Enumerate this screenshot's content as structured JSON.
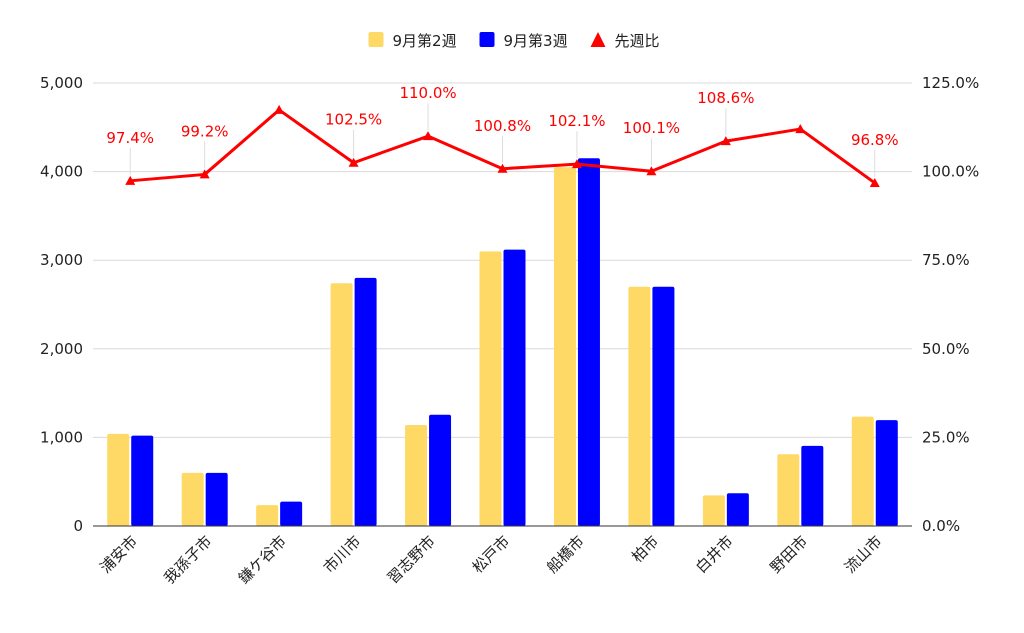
{
  "chart_data": {
    "type": "bar",
    "categories": [
      "浦安市",
      "我孫子市",
      "鎌ケ谷市",
      "市川市",
      "習志野市",
      "松戸市",
      "船橋市",
      "柏市",
      "白井市",
      "野田市",
      "流山市"
    ],
    "series": [
      {
        "name": "9月第2週",
        "type": "bar",
        "axis": "left",
        "color": "#FFD966",
        "values": [
          1040,
          600,
          235,
          2740,
          1140,
          3100,
          4050,
          2700,
          345,
          810,
          1235
        ]
      },
      {
        "name": "9月第3週",
        "type": "bar",
        "axis": "left",
        "color": "#0000FF",
        "values": [
          1020,
          600,
          275,
          2800,
          1255,
          3120,
          4150,
          2700,
          370,
          905,
          1195
        ]
      },
      {
        "name": "先週比",
        "type": "line",
        "axis": "right",
        "color": "#FF0000",
        "marker": "triangle",
        "values": [
          97.4,
          99.2,
          117.4,
          102.5,
          110.0,
          100.8,
          102.1,
          100.1,
          108.6,
          112.0,
          96.8
        ],
        "labels": [
          "97.4%",
          "99.2%",
          "",
          "102.5%",
          "110.0%",
          "100.8%",
          "102.1%",
          "100.1%",
          "108.6%",
          "",
          "96.8%"
        ]
      }
    ],
    "ylim": [
      0,
      5000
    ],
    "yticks": [
      "0",
      "1,000",
      "2,000",
      "3,000",
      "4,000",
      "5,000"
    ],
    "y2lim": [
      0,
      125
    ],
    "y2ticks": [
      "0.0%",
      "25.0%",
      "50.0%",
      "75.0%",
      "100.0%",
      "125.0%"
    ],
    "grid": true,
    "legend_position": "top-center",
    "title": "",
    "xlabel": "",
    "ylabel": ""
  }
}
